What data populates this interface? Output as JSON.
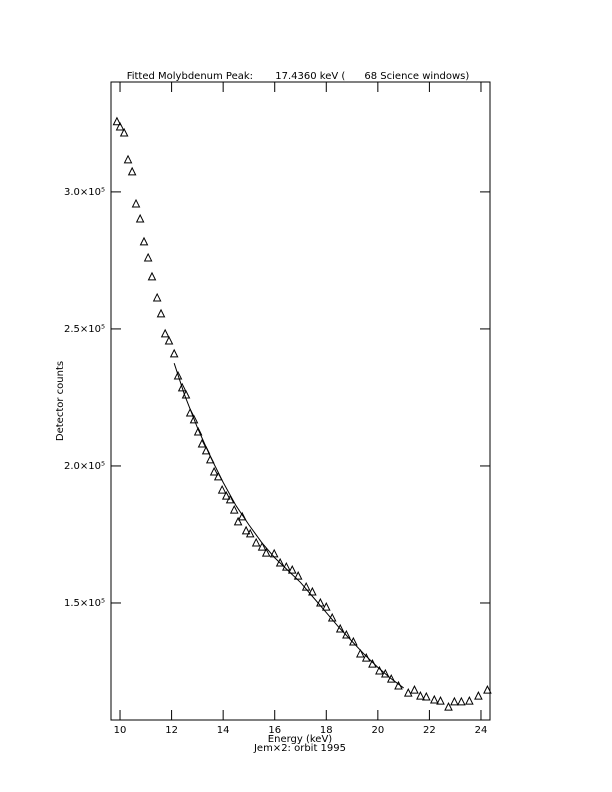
{
  "chart_data": {
    "type": "scatter",
    "title": "Fitted Molybdenum Peak:       17.4360 keV (      68 Science windows)",
    "x_label": "Energy (keV)",
    "y_label": "Detector counts",
    "footer": "Jem×2: orbit 1995",
    "xlim": [
      9.65,
      24.35
    ],
    "ylim": [
      107300,
      340100
    ],
    "xticks": [
      10,
      12,
      14,
      16,
      18,
      20,
      22,
      24
    ],
    "yticks": [
      {
        "value": 150000,
        "label": "1.5×10⁵"
      },
      {
        "value": 200000,
        "label": "2.0×10⁵"
      },
      {
        "value": 250000,
        "label": "2.5×10⁵"
      },
      {
        "value": 300000,
        "label": "3.0×10⁵"
      }
    ],
    "series": [
      {
        "name": "data",
        "color": "#000000",
        "marker": "triangle",
        "x": [
          9.88,
          10.0,
          10.16,
          10.31,
          10.47,
          10.62,
          10.78,
          10.93,
          11.09,
          11.24,
          11.44,
          11.59,
          11.75,
          11.9,
          12.1,
          12.25,
          12.41,
          12.56,
          12.72,
          12.87,
          13.03,
          13.18,
          13.34,
          13.5,
          13.65,
          13.81,
          13.96,
          14.12,
          14.27,
          14.43,
          14.58,
          14.74,
          14.89,
          15.05,
          15.28,
          15.51,
          15.67,
          15.98,
          16.21,
          16.45,
          16.68,
          16.91,
          17.22,
          17.46,
          17.77,
          18.0,
          18.23,
          18.54,
          18.78,
          19.05,
          19.32,
          19.55,
          19.79,
          20.06,
          20.29,
          20.52,
          20.8,
          21.18,
          21.42,
          21.65,
          21.88,
          22.19,
          22.43,
          22.74,
          22.97,
          23.24,
          23.55,
          23.9,
          24.25
        ],
        "values": [
          325600,
          323700,
          321500,
          311700,
          307300,
          295600,
          290100,
          281750,
          275900,
          269000,
          261300,
          255500,
          248200,
          245600,
          240900,
          232800,
          228500,
          225900,
          219300,
          216800,
          212400,
          208000,
          205500,
          202200,
          197800,
          196000,
          191200,
          189000,
          187600,
          183900,
          179600,
          181400,
          176300,
          175200,
          171900,
          170400,
          168200,
          167900,
          164600,
          163100,
          162000,
          159800,
          155800,
          154000,
          150000,
          148500,
          144500,
          140500,
          138300,
          135750,
          131400,
          129900,
          127700,
          125200,
          124100,
          122200,
          119700,
          117100,
          118200,
          116000,
          115700,
          114600,
          114200,
          112000,
          113900,
          113900,
          114200,
          116000,
          118200
        ]
      },
      {
        "name": "fit",
        "color": "#000000",
        "marker": "line",
        "x": [
          12.1,
          12.5,
          13,
          13.5,
          14,
          14.5,
          15,
          15.5,
          16,
          16.5,
          17,
          17.5,
          18,
          18.5,
          19,
          19.5,
          20,
          20.5,
          21
        ],
        "values": [
          237500,
          226000,
          214000,
          203500,
          194000,
          185500,
          178500,
          172000,
          166500,
          162000,
          157500,
          152000,
          146500,
          141000,
          136000,
          131000,
          126500,
          122500,
          119000
        ]
      }
    ]
  }
}
